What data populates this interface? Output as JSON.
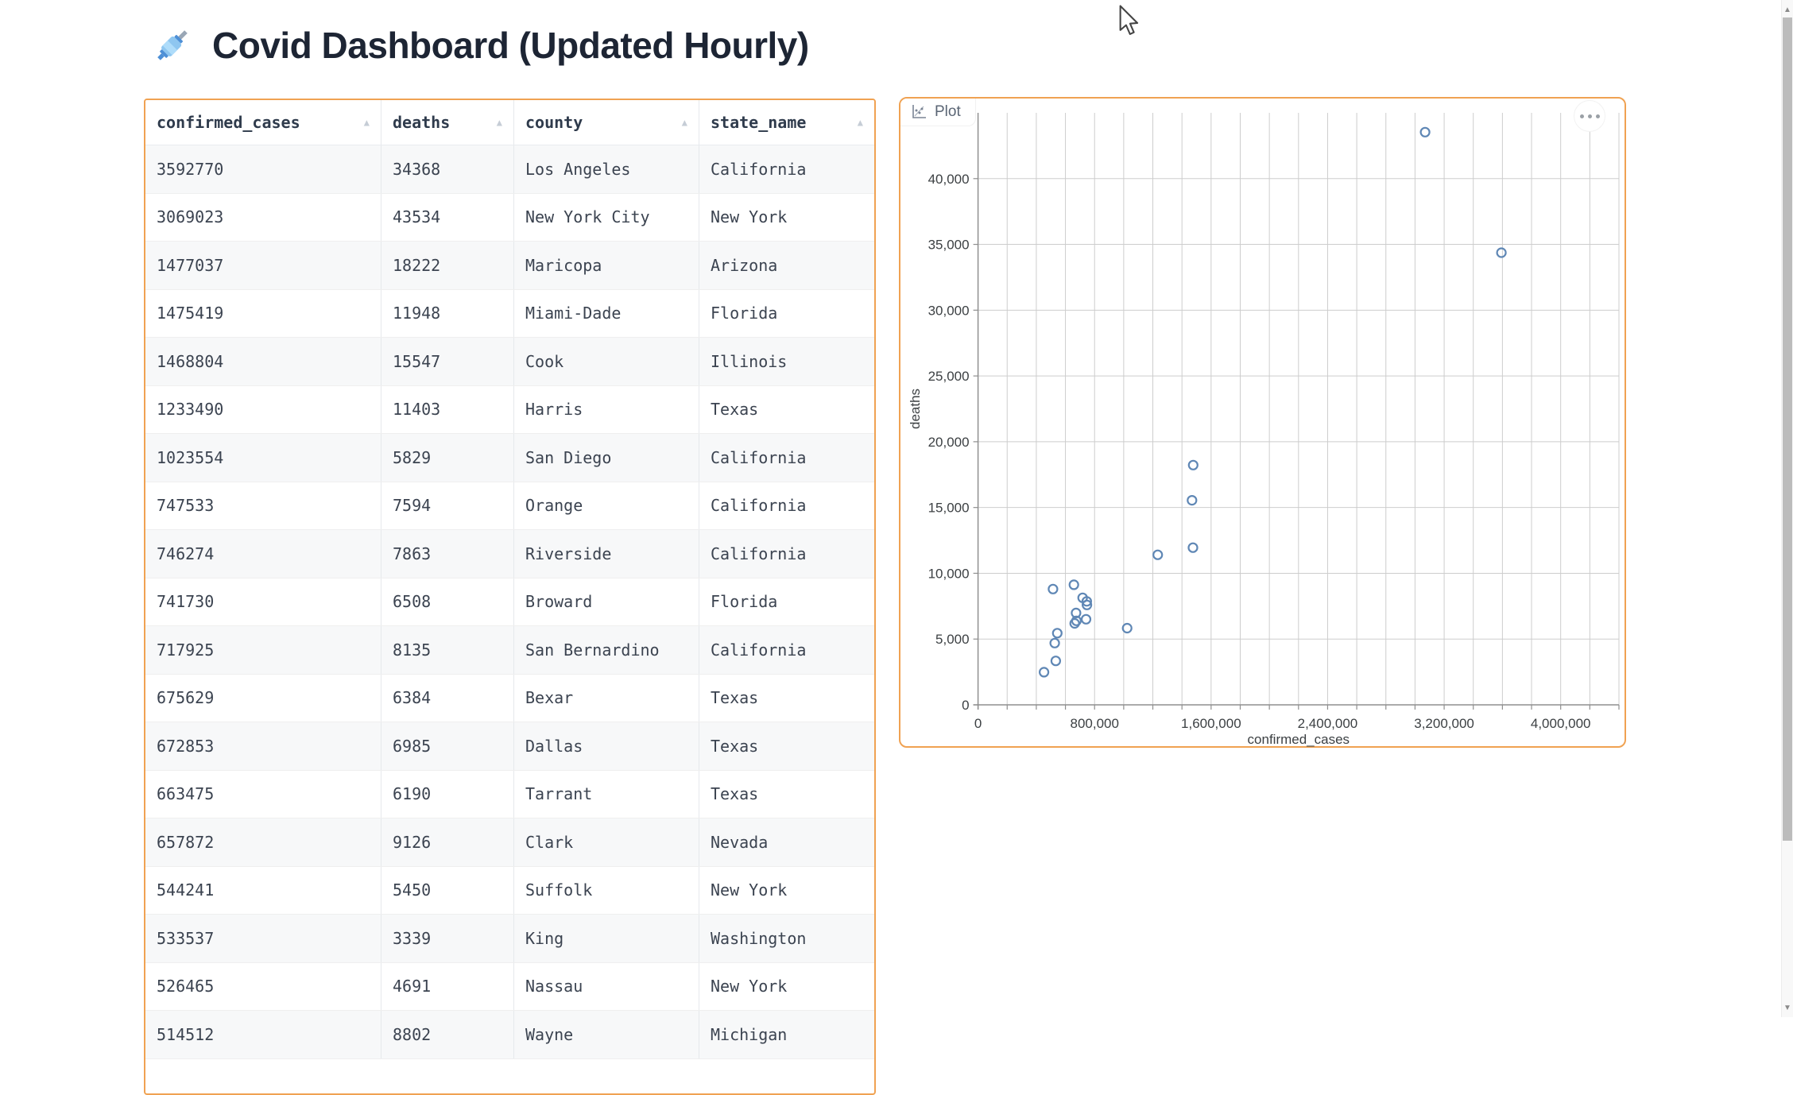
{
  "page": {
    "title": "Covid Dashboard (Updated Hourly)",
    "title_icon": "syringe-emoji"
  },
  "table": {
    "columns": [
      "confirmed_cases",
      "deaths",
      "county",
      "state_name"
    ],
    "sort_icon_glyph": "▲",
    "rows": [
      [
        "3592770",
        "34368",
        "Los Angeles",
        "California"
      ],
      [
        "3069023",
        "43534",
        "New York City",
        "New York"
      ],
      [
        "1477037",
        "18222",
        "Maricopa",
        "Arizona"
      ],
      [
        "1475419",
        "11948",
        "Miami-Dade",
        "Florida"
      ],
      [
        "1468804",
        "15547",
        "Cook",
        "Illinois"
      ],
      [
        "1233490",
        "11403",
        "Harris",
        "Texas"
      ],
      [
        "1023554",
        "5829",
        "San Diego",
        "California"
      ],
      [
        "747533",
        "7594",
        "Orange",
        "California"
      ],
      [
        "746274",
        "7863",
        "Riverside",
        "California"
      ],
      [
        "741730",
        "6508",
        "Broward",
        "Florida"
      ],
      [
        "717925",
        "8135",
        "San Bernardino",
        "California"
      ],
      [
        "675629",
        "6384",
        "Bexar",
        "Texas"
      ],
      [
        "672853",
        "6985",
        "Dallas",
        "Texas"
      ],
      [
        "663475",
        "6190",
        "Tarrant",
        "Texas"
      ],
      [
        "657872",
        "9126",
        "Clark",
        "Nevada"
      ],
      [
        "544241",
        "5450",
        "Suffolk",
        "New York"
      ],
      [
        "533537",
        "3339",
        "King",
        "Washington"
      ],
      [
        "526465",
        "4691",
        "Nassau",
        "New York"
      ],
      [
        "514512",
        "8802",
        "Wayne",
        "Michigan"
      ]
    ]
  },
  "plot_panel": {
    "tab_label": "Plot",
    "tab_icon": "scatter-chart-icon",
    "menu_icon": "ellipsis-icon"
  },
  "chart_data": {
    "type": "scatter",
    "xlabel": "confirmed_cases",
    "ylabel": "deaths",
    "xlim": [
      0,
      4400000
    ],
    "ylim": [
      0,
      45000
    ],
    "x_tick_labels": [
      0,
      800000,
      1600000,
      2400000,
      3200000,
      4000000
    ],
    "x_grid_interval": 200000,
    "y_tick_interval": 5000,
    "grid": true,
    "legend": "none",
    "point_style": "open-circle",
    "point_color": "#5f87b5",
    "points": [
      {
        "x": 3592770,
        "y": 34368,
        "label": "Los Angeles, California"
      },
      {
        "x": 3069023,
        "y": 43534,
        "label": "New York City, New York"
      },
      {
        "x": 1477037,
        "y": 18222,
        "label": "Maricopa, Arizona"
      },
      {
        "x": 1475419,
        "y": 11948,
        "label": "Miami-Dade, Florida"
      },
      {
        "x": 1468804,
        "y": 15547,
        "label": "Cook, Illinois"
      },
      {
        "x": 1233490,
        "y": 11403,
        "label": "Harris, Texas"
      },
      {
        "x": 1023554,
        "y": 5829,
        "label": "San Diego, California"
      },
      {
        "x": 747533,
        "y": 7594,
        "label": "Orange, California"
      },
      {
        "x": 746274,
        "y": 7863,
        "label": "Riverside, California"
      },
      {
        "x": 741730,
        "y": 6508,
        "label": "Broward, Florida"
      },
      {
        "x": 717925,
        "y": 8135,
        "label": "San Bernardino, California"
      },
      {
        "x": 675629,
        "y": 6384,
        "label": "Bexar, Texas"
      },
      {
        "x": 672853,
        "y": 6985,
        "label": "Dallas, Texas"
      },
      {
        "x": 663475,
        "y": 6190,
        "label": "Tarrant, Texas"
      },
      {
        "x": 657872,
        "y": 9126,
        "label": "Clark, Nevada"
      },
      {
        "x": 544241,
        "y": 5450,
        "label": "Suffolk, New York"
      },
      {
        "x": 533537,
        "y": 3339,
        "label": "King, Washington"
      },
      {
        "x": 526465,
        "y": 4691,
        "label": "Nassau, New York"
      },
      {
        "x": 514512,
        "y": 8802,
        "label": "Wayne, Michigan"
      },
      {
        "x": 453000,
        "y": 2480,
        "label": ""
      }
    ]
  },
  "colors": {
    "accent_orange": "#f0a252",
    "point_blue": "#5f87b5",
    "grid_gray": "#cdcdcd",
    "axis_gray": "#8f8f8f"
  }
}
